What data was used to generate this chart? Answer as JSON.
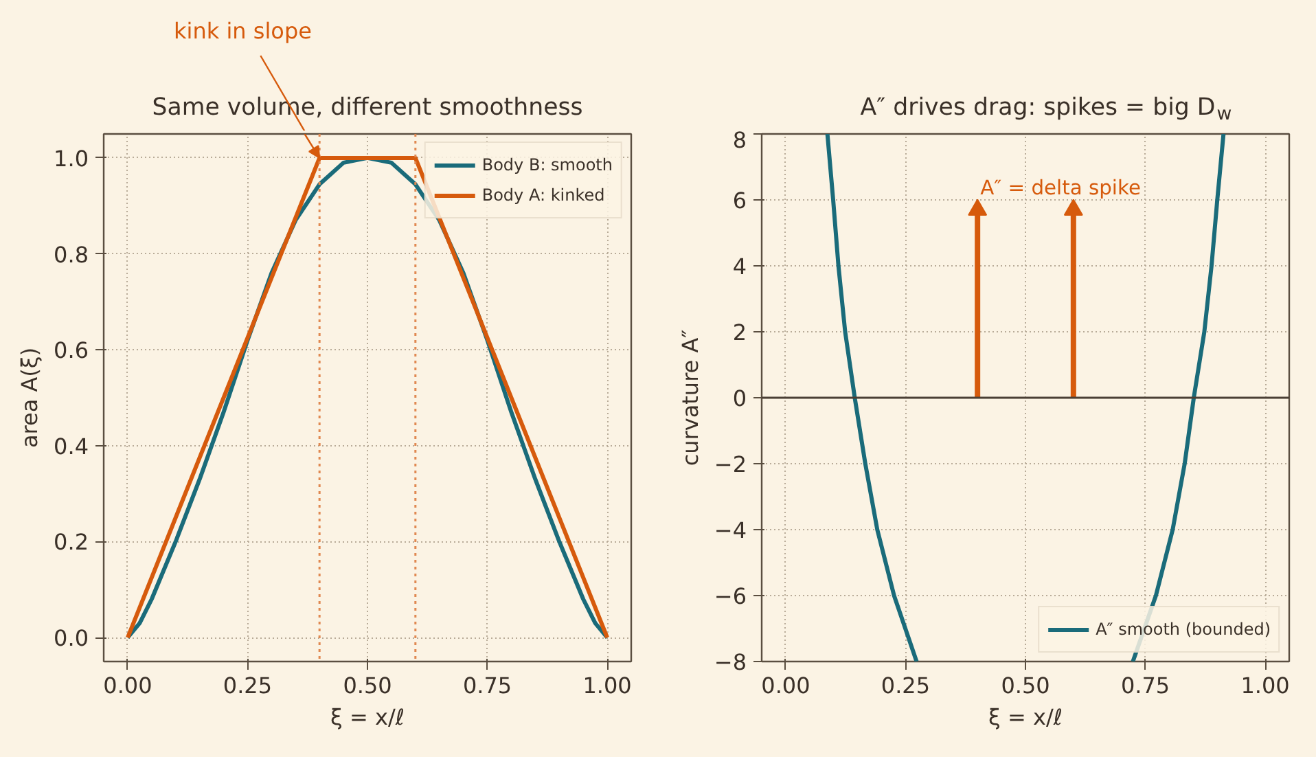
{
  "chart_data": [
    {
      "type": "line",
      "title": "Same volume, different smoothness",
      "xlabel": "ξ = x/ℓ",
      "ylabel": "area A(ξ)",
      "series": [
        {
          "name": "Body B: smooth",
          "color": "#1a6b7a",
          "x": [
            0,
            0.025,
            0.05,
            0.1,
            0.15,
            0.2,
            0.25,
            0.3,
            0.35,
            0.4,
            0.45,
            0.5,
            0.55,
            0.6,
            0.65,
            0.7,
            0.75,
            0.8,
            0.85,
            0.9,
            0.95,
            0.975,
            1.0
          ],
          "values": [
            0,
            0.03,
            0.08,
            0.2,
            0.33,
            0.47,
            0.62,
            0.76,
            0.87,
            0.945,
            0.99,
            1.0,
            0.99,
            0.945,
            0.87,
            0.76,
            0.62,
            0.47,
            0.33,
            0.2,
            0.08,
            0.03,
            0
          ]
        },
        {
          "name": "Body A: kinked",
          "color": "#d65a0c",
          "x": [
            0,
            0.4,
            0.6,
            1.0
          ],
          "values": [
            0,
            1.0,
            1.0,
            0
          ]
        }
      ],
      "xlim": [
        -0.05,
        1.05
      ],
      "ylim": [
        -0.05,
        1.05
      ],
      "xticks": [
        {
          "value": 0,
          "label": "0.00"
        },
        {
          "value": 0.25,
          "label": "0.25"
        },
        {
          "value": 0.5,
          "label": "0.50"
        },
        {
          "value": 0.75,
          "label": "0.75"
        },
        {
          "value": 1.0,
          "label": "1.00"
        }
      ],
      "yticks": [
        {
          "value": 0,
          "label": "0.0"
        },
        {
          "value": 0.2,
          "label": "0.2"
        },
        {
          "value": 0.4,
          "label": "0.4"
        },
        {
          "value": 0.6,
          "label": "0.6"
        },
        {
          "value": 0.8,
          "label": "0.8"
        },
        {
          "value": 1.0,
          "label": "1.0"
        }
      ],
      "ref_lines": [
        {
          "axis": "x",
          "value": 0.4,
          "color": "#e08850",
          "line_style": "dotted"
        },
        {
          "axis": "x",
          "value": 0.6,
          "color": "#e08850",
          "line_style": "dotted"
        }
      ],
      "annotations": [
        "kink in slope"
      ],
      "grid": true,
      "legend": "top right",
      "line_style": "solid"
    },
    {
      "type": "line",
      "title": "A″ drives drag: spikes = big D$_{w}$",
      "xlabel": "ξ = x/ℓ",
      "ylabel": "curvature A″",
      "series": [
        {
          "name": "A″ smooth (bounded)",
          "color": "#1a6b7a",
          "x": [
            0.087,
            0.099,
            0.11,
            0.124,
            0.144,
            0.166,
            0.191,
            0.226,
            0.273,
            0.5,
            0.724,
            0.772,
            0.807,
            0.832,
            0.851,
            0.873,
            0.888,
            0.9,
            0.913
          ],
          "values": [
            8,
            6,
            4,
            2,
            0,
            -2,
            -4,
            -6,
            -8,
            null,
            -8,
            -6,
            -4,
            -2,
            0,
            2,
            4,
            6,
            8
          ]
        },
        {
          "type": "lollipop",
          "color": "#d65a0c",
          "marker": "triangle",
          "x": [
            0.4,
            0.6
          ],
          "values": [
            5.7,
            5.7
          ]
        }
      ],
      "xlim": [
        -0.05,
        1.05
      ],
      "ylim": [
        -8,
        8
      ],
      "xticks": [
        {
          "value": 0,
          "label": "0.00"
        },
        {
          "value": 0.25,
          "label": "0.25"
        },
        {
          "value": 0.5,
          "label": "0.50"
        },
        {
          "value": 0.75,
          "label": "0.75"
        },
        {
          "value": 1.0,
          "label": "1.00"
        }
      ],
      "yticks": [
        {
          "value": -8,
          "label": "−8"
        },
        {
          "value": -6,
          "label": "−6"
        },
        {
          "value": -4,
          "label": "−4"
        },
        {
          "value": -2,
          "label": "−2"
        },
        0,
        2,
        4,
        6,
        8
      ],
      "ref_lines": [
        {
          "axis": "y",
          "value": 0,
          "color": "#4a3f35",
          "line_style": "solid"
        }
      ],
      "annotations": [
        "A″ = delta spike"
      ],
      "grid": true,
      "legend": "bottom right",
      "line_style": "solid"
    }
  ]
}
